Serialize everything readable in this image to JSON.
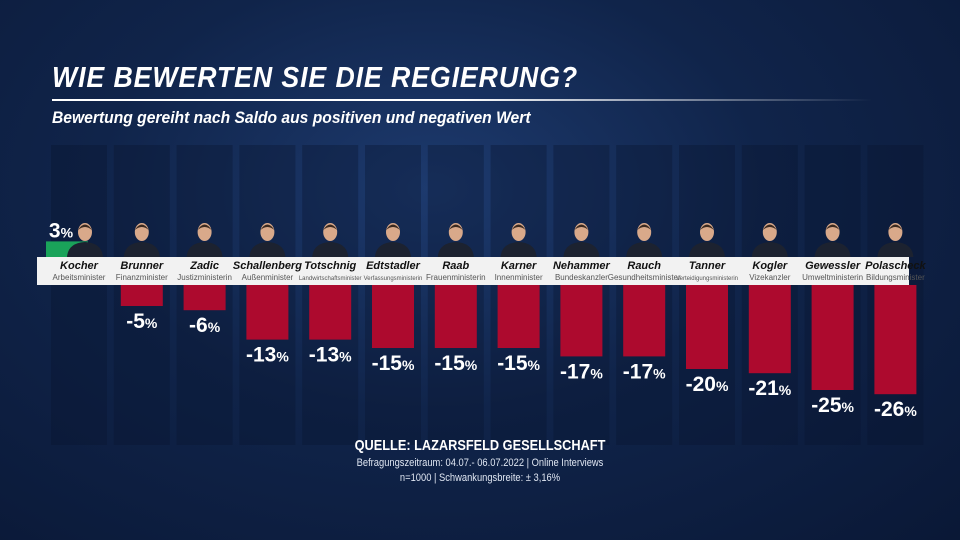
{
  "title": "WIE BEWERTEN SIE DIE REGIERUNG?",
  "subtitle": "Bewertung gereiht nach Saldo aus positiven und negativen Wert",
  "source": {
    "line1": "QUELLE:  LAZARSFELD GESELLSCHAFT",
    "line2": "Befragungszeitraum: 04.07.- 06.07.2022 | Online Interviews",
    "line3": "n=1000 |  Schwankungsbreite: ± 3,16%"
  },
  "colors": {
    "positive": "#1aa35a",
    "negative": "#ad0a2e",
    "strip": "#f2f2f2"
  },
  "chart_data": {
    "type": "bar",
    "categories": [
      "Kocher",
      "Brunner",
      "Zadic",
      "Schallenberg",
      "Totschnig",
      "Edtstadler",
      "Raab",
      "Karner",
      "Nehammer",
      "Rauch",
      "Tanner",
      "Kogler",
      "Gewessler",
      "Polascheck"
    ],
    "roles": [
      "Arbeitsminister",
      "Finanzminister",
      "Justizministerin",
      "Außenminister",
      "Landwirtschaftsminister",
      "Verfassungsministerin",
      "Frauenministerin",
      "Innenminister",
      "Bundeskanzler",
      "Gesundheitsminister",
      "Verteidigungsministerin",
      "Vizekanzler",
      "Umweltministerin",
      "Bildungsminister"
    ],
    "values": [
      3,
      -5,
      -6,
      -13,
      -13,
      -15,
      -15,
      -15,
      -17,
      -17,
      -20,
      -21,
      -25,
      -26
    ],
    "unit": "%"
  }
}
